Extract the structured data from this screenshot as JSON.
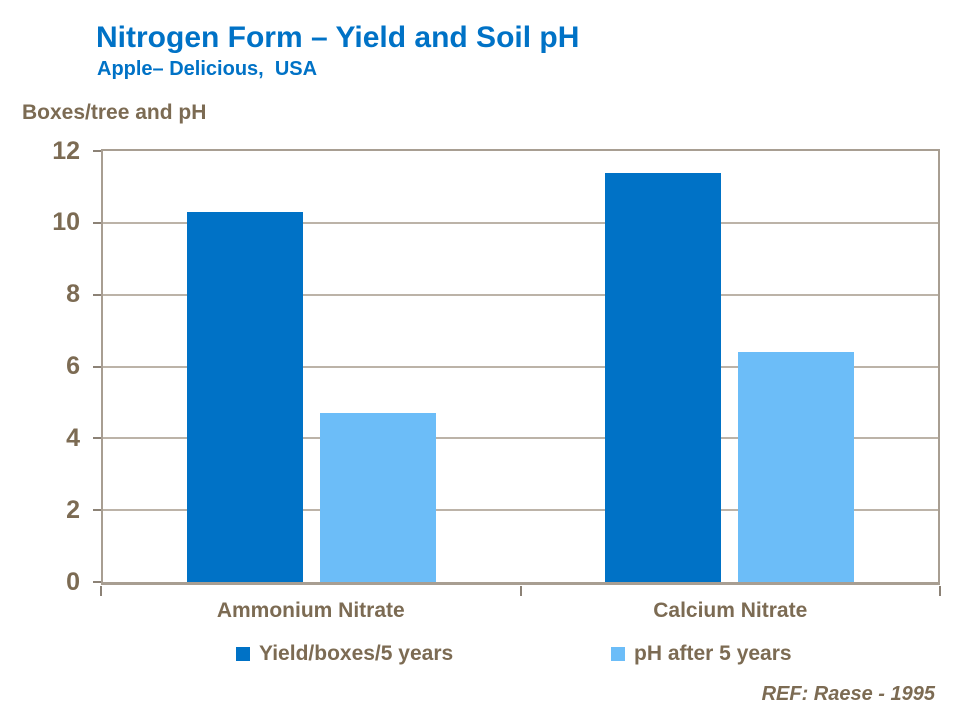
{
  "slide": {
    "title": "Nitrogen Form – Yield and Soil pH",
    "subtitle": "Apple– Delicious,  USA",
    "footer_ref": "REF: Raese - 1995"
  },
  "chart_data": {
    "type": "bar",
    "title": "Nitrogen Form – Yield and Soil pH",
    "subtitle": "Apple– Delicious, USA",
    "axis_title": "Boxes/tree and pH",
    "categories": [
      "Ammonium Nitrate",
      "Calcium Nitrate"
    ],
    "series": [
      {
        "name": "Yield/boxes/5 years",
        "color": "#0072C6",
        "values": [
          10.3,
          11.4
        ]
      },
      {
        "name": "pH after 5 years",
        "color": "#6CBDF8",
        "values": [
          4.7,
          6.4
        ]
      }
    ],
    "ylim": [
      0,
      12
    ],
    "yticks": [
      0,
      2,
      4,
      6,
      8,
      10,
      12
    ],
    "grid": "horizontal",
    "legend_position": "bottom",
    "annotation": "REF: Raese - 1995"
  },
  "colors": {
    "title_blue": "#0072C6",
    "text_brown": "#7C6B53",
    "frame": "#A89E92",
    "gridline": "#BCB3A8",
    "tick": "#8C8276",
    "background": "#FFFFFF"
  }
}
